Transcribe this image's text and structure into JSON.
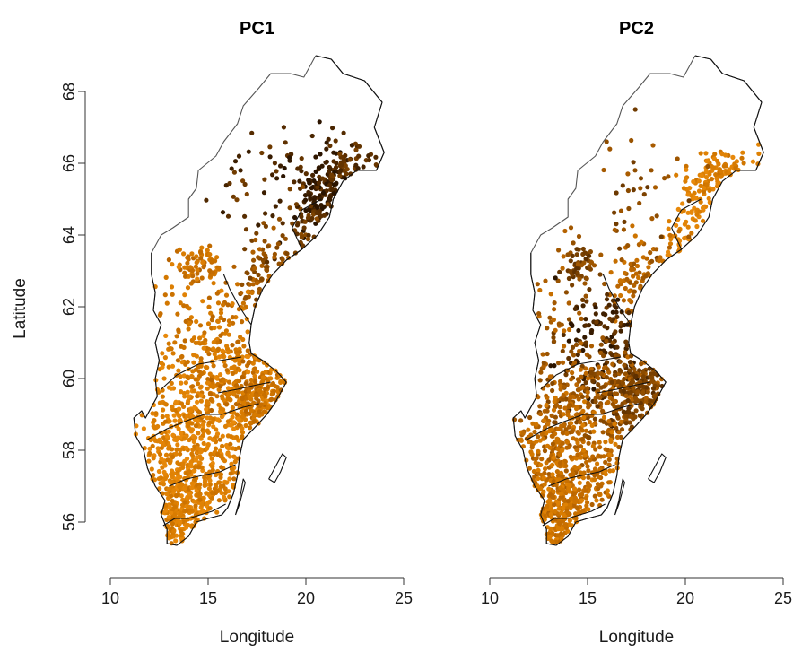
{
  "chart_data": [
    {
      "type": "scatter",
      "title": "PC1",
      "xlabel": "Longitude",
      "ylabel": "Latitude",
      "xlim": [
        10,
        25
      ],
      "ylim": [
        55,
        69
      ],
      "xticks": [
        10,
        15,
        20,
        25
      ],
      "yticks": [
        56,
        58,
        60,
        62,
        64,
        66,
        68
      ],
      "palette": [
        "#2a1400",
        "#5a2e00",
        "#8a4a00",
        "#b86400",
        "#d67a00",
        "#e8890a"
      ],
      "clusters": [
        {
          "center": [
            21.0,
            65.2
          ],
          "spread": [
            0.9,
            0.7
          ],
          "count": 160,
          "level": 0.1
        },
        {
          "center": [
            22.5,
            65.8
          ],
          "spread": [
            0.8,
            0.4
          ],
          "count": 50,
          "level": 0.2
        },
        {
          "center": [
            19.8,
            64.0
          ],
          "spread": [
            0.6,
            0.5
          ],
          "count": 40,
          "level": 0.3
        },
        {
          "center": [
            18.0,
            62.8
          ],
          "spread": [
            0.8,
            0.6
          ],
          "count": 70,
          "level": 0.45
        },
        {
          "center": [
            17.5,
            65.0
          ],
          "spread": [
            1.5,
            1.0
          ],
          "count": 40,
          "level": 0.2
        },
        {
          "center": [
            14.5,
            63.2
          ],
          "spread": [
            0.5,
            0.3
          ],
          "count": 50,
          "level": 0.7
        },
        {
          "center": [
            16.0,
            61.0
          ],
          "spread": [
            1.5,
            1.0
          ],
          "count": 180,
          "level": 0.75
        },
        {
          "center": [
            15.5,
            59.5
          ],
          "spread": [
            2.2,
            0.8
          ],
          "count": 300,
          "level": 0.85
        },
        {
          "center": [
            17.8,
            59.5
          ],
          "spread": [
            1.0,
            0.5
          ],
          "count": 120,
          "level": 0.7
        },
        {
          "center": [
            13.5,
            58.0
          ],
          "spread": [
            1.3,
            0.8
          ],
          "count": 250,
          "level": 0.92
        },
        {
          "center": [
            13.5,
            56.3
          ],
          "spread": [
            1.0,
            0.8
          ],
          "count": 260,
          "level": 0.88
        },
        {
          "center": [
            16.0,
            57.3
          ],
          "spread": [
            0.8,
            0.7
          ],
          "count": 60,
          "level": 0.85
        },
        {
          "center": [
            13.5,
            62.0
          ],
          "spread": [
            1.2,
            1.0
          ],
          "count": 40,
          "level": 0.8
        }
      ]
    },
    {
      "type": "scatter",
      "title": "PC2",
      "xlabel": "Longitude",
      "ylabel": "",
      "xlim": [
        10,
        25
      ],
      "ylim": [
        55,
        69
      ],
      "xticks": [
        10,
        15,
        20,
        25
      ],
      "palette": [
        "#2a1400",
        "#5a2e00",
        "#8a4a00",
        "#b86400",
        "#d67a00",
        "#e8890a"
      ],
      "clusters": [
        {
          "center": [
            22.0,
            65.6
          ],
          "spread": [
            0.9,
            0.4
          ],
          "count": 90,
          "level": 0.85
        },
        {
          "center": [
            20.6,
            64.8
          ],
          "spread": [
            0.4,
            0.4
          ],
          "count": 40,
          "level": 0.95
        },
        {
          "center": [
            19.8,
            63.9
          ],
          "spread": [
            0.5,
            0.4
          ],
          "count": 30,
          "level": 0.9
        },
        {
          "center": [
            17.5,
            65.3
          ],
          "spread": [
            1.5,
            1.0
          ],
          "count": 40,
          "level": 0.4
        },
        {
          "center": [
            18.0,
            62.6
          ],
          "spread": [
            0.9,
            0.7
          ],
          "count": 80,
          "level": 0.6
        },
        {
          "center": [
            14.5,
            63.2
          ],
          "spread": [
            0.5,
            0.3
          ],
          "count": 50,
          "level": 0.35
        },
        {
          "center": [
            16.0,
            60.8
          ],
          "spread": [
            1.3,
            0.8
          ],
          "count": 160,
          "level": 0.15
        },
        {
          "center": [
            15.5,
            59.5
          ],
          "spread": [
            2.2,
            0.8
          ],
          "count": 300,
          "level": 0.5
        },
        {
          "center": [
            17.8,
            59.4
          ],
          "spread": [
            1.0,
            0.5
          ],
          "count": 120,
          "level": 0.35
        },
        {
          "center": [
            13.5,
            58.0
          ],
          "spread": [
            1.3,
            0.8
          ],
          "count": 250,
          "level": 0.65
        },
        {
          "center": [
            13.5,
            56.3
          ],
          "spread": [
            1.0,
            0.8
          ],
          "count": 260,
          "level": 0.75
        },
        {
          "center": [
            16.0,
            57.3
          ],
          "spread": [
            0.8,
            0.7
          ],
          "count": 60,
          "level": 0.7
        },
        {
          "center": [
            13.5,
            62.0
          ],
          "spread": [
            1.2,
            1.0
          ],
          "count": 40,
          "level": 0.55
        }
      ]
    }
  ]
}
